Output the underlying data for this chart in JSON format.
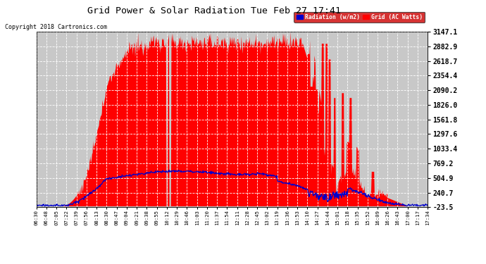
{
  "title": "Grid Power & Solar Radiation Tue Feb 27 17:41",
  "copyright": "Copyright 2018 Cartronics.com",
  "legend_radiation": "Radiation (w/m2)",
  "legend_grid": "Grid (AC Watts)",
  "yticks": [
    -23.5,
    240.7,
    504.9,
    769.2,
    1033.4,
    1297.6,
    1561.8,
    1826.0,
    2090.2,
    2354.4,
    2618.7,
    2882.9,
    3147.1
  ],
  "ymin": -23.5,
  "ymax": 3147.1,
  "bg_color": "#ffffff",
  "plot_bg_color": "#c8c8c8",
  "grid_color": "#ffffff",
  "red_color": "#ff0000",
  "blue_color": "#0000cc",
  "title_color": "#000000",
  "x_tick_labels": [
    "06:30",
    "06:48",
    "07:05",
    "07:22",
    "07:39",
    "07:56",
    "08:13",
    "08:30",
    "08:47",
    "09:04",
    "09:21",
    "09:38",
    "09:55",
    "10:12",
    "10:29",
    "10:46",
    "11:03",
    "11:20",
    "11:37",
    "11:54",
    "12:11",
    "12:28",
    "12:45",
    "13:02",
    "13:19",
    "13:36",
    "13:53",
    "14:10",
    "14:27",
    "14:44",
    "15:01",
    "15:18",
    "15:35",
    "15:52",
    "16:09",
    "16:26",
    "16:43",
    "17:00",
    "17:17",
    "17:34"
  ]
}
